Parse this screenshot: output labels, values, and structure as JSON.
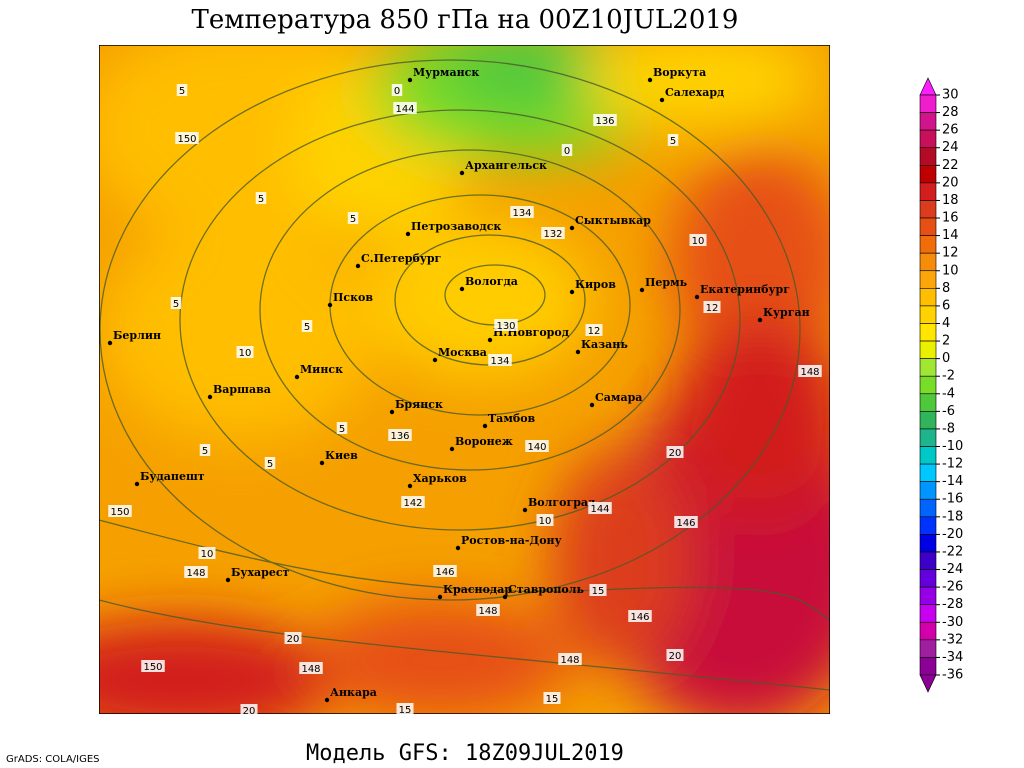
{
  "header": {
    "title": "Температура 850 гПа на 00Z10JUL2019"
  },
  "footer": {
    "credit": "GrADS: COLA/IGES",
    "model": "Модель GFS: 18Z09JUL2019"
  },
  "cities": [
    "Мурманск",
    "Воркута",
    "Салехард",
    "Архангельск",
    "Петрозаводск",
    "Сыктывкар",
    "С.Петербург",
    "Вологда",
    "Киров",
    "Пермь",
    "Екатеринбург",
    "Курган",
    "Псков",
    "Берлин",
    "Москва",
    "Н.Новгород",
    "Казань",
    "Минск",
    "Варшава",
    "Брянск",
    "Самара",
    "Тамбов",
    "Киев",
    "Воронеж",
    "Будапешт",
    "Харьков",
    "Волгоград",
    "Ростов-на-Дону",
    "Бухарест",
    "Краснодар",
    "Ставрополь",
    "Анкара"
  ],
  "contour_labels": [
    "5",
    "150",
    "0",
    "144",
    "136",
    "0",
    "5",
    "5",
    "5",
    "134",
    "132",
    "10",
    "5",
    "5",
    "130",
    "12",
    "12",
    "134",
    "10",
    "148",
    "5",
    "136",
    "140",
    "20",
    "5",
    "5",
    "142",
    "150",
    "10",
    "144",
    "146",
    "10",
    "148",
    "146",
    "15",
    "148",
    "146",
    "20",
    "148",
    "150",
    "148",
    "20",
    "15",
    "15",
    "20"
  ],
  "colorbar": {
    "ticks": [
      30,
      28,
      26,
      24,
      22,
      20,
      18,
      16,
      14,
      12,
      10,
      8,
      6,
      4,
      2,
      0,
      -2,
      -4,
      -6,
      -8,
      -10,
      -12,
      -14,
      -16,
      -18,
      -20,
      -22,
      -24,
      -26,
      -28,
      -30,
      -32,
      -34,
      -36
    ],
    "over_color": "#ff1eff",
    "under_color": "#8c0096",
    "colors": [
      "#ee1ecc",
      "#d2148c",
      "#c80f5a",
      "#b40a28",
      "#be0000",
      "#d21e1e",
      "#dc3c1e",
      "#e65014",
      "#f06e0a",
      "#f58c0a",
      "#fba50a",
      "#ffbe00",
      "#ffd200",
      "#ffe600",
      "#ebf000",
      "#a0e632",
      "#78dc28",
      "#50c83c",
      "#32b45a",
      "#1eb48c",
      "#00c8c8",
      "#00c8ff",
      "#0096ff",
      "#0064ff",
      "#0032ff",
      "#0000e6",
      "#3c00c8",
      "#6400dc",
      "#9600e6",
      "#c800f0",
      "#d200aa",
      "#a01ea0",
      "#8c0096"
    ]
  }
}
